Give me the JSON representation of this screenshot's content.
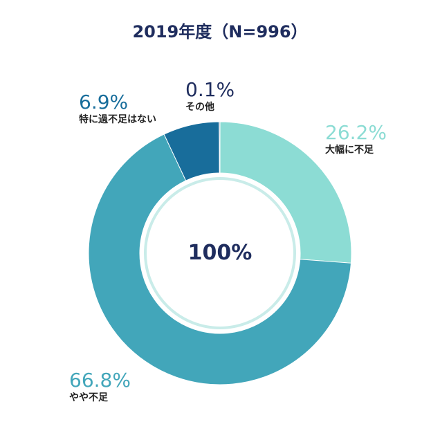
{
  "chart_data": {
    "type": "pie",
    "title": "2019年度（N=996）",
    "center_label": "100%",
    "series": [
      {
        "name": "大幅に不足",
        "value": 26.2,
        "label": "26.2%",
        "color": "#8cdcd4"
      },
      {
        "name": "やや不足",
        "value": 66.8,
        "label": "66.8%",
        "color": "#42a6ba"
      },
      {
        "name": "特に過不足はない",
        "value": 6.9,
        "label": "6.9%",
        "color": "#186d9b"
      },
      {
        "name": "その他",
        "value": 0.1,
        "label": "0.1%",
        "color": "#1f2d5e"
      }
    ]
  }
}
